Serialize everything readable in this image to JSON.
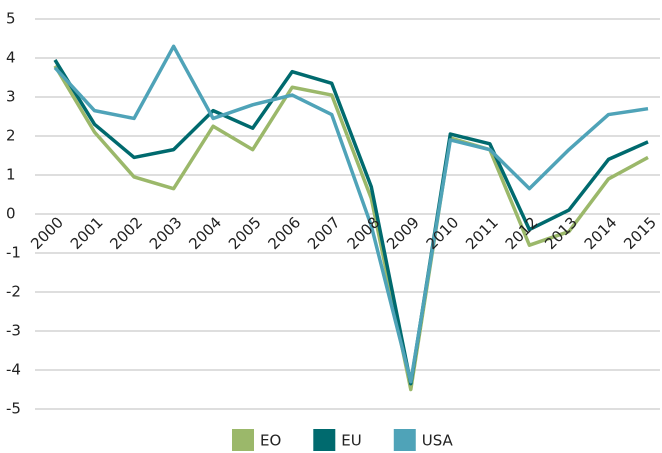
{
  "chart_data": {
    "type": "line",
    "categories": [
      "2000",
      "2001",
      "2002",
      "2003",
      "2004",
      "2005",
      "2006",
      "2007",
      "2008",
      "2009",
      "2010",
      "2011",
      "2012",
      "2013",
      "2014",
      "2015"
    ],
    "series": [
      {
        "name": "EO",
        "color": "#9bb86a",
        "values": [
          3.8,
          2.1,
          0.95,
          0.65,
          2.25,
          1.65,
          3.25,
          3.05,
          0.4,
          -4.5,
          1.95,
          1.65,
          -0.8,
          -0.45,
          0.9,
          1.45
        ]
      },
      {
        "name": "EU",
        "color": "#006a6e",
        "values": [
          3.95,
          2.3,
          1.45,
          1.65,
          2.65,
          2.2,
          3.65,
          3.35,
          0.7,
          -4.35,
          2.05,
          1.8,
          -0.4,
          0.1,
          1.4,
          1.85
        ]
      },
      {
        "name": "USA",
        "color": "#4fa3b8",
        "values": [
          3.75,
          2.65,
          2.45,
          4.3,
          2.45,
          2.8,
          3.05,
          2.55,
          -0.3,
          -4.3,
          1.9,
          1.65,
          0.65,
          1.65,
          2.55,
          2.7
        ]
      }
    ],
    "ylim": [
      -5,
      5
    ],
    "yticks": [
      -5,
      -4,
      -3,
      -2,
      -1,
      0,
      1,
      2,
      3,
      4,
      5
    ],
    "grid": true,
    "legend": "bottom"
  }
}
